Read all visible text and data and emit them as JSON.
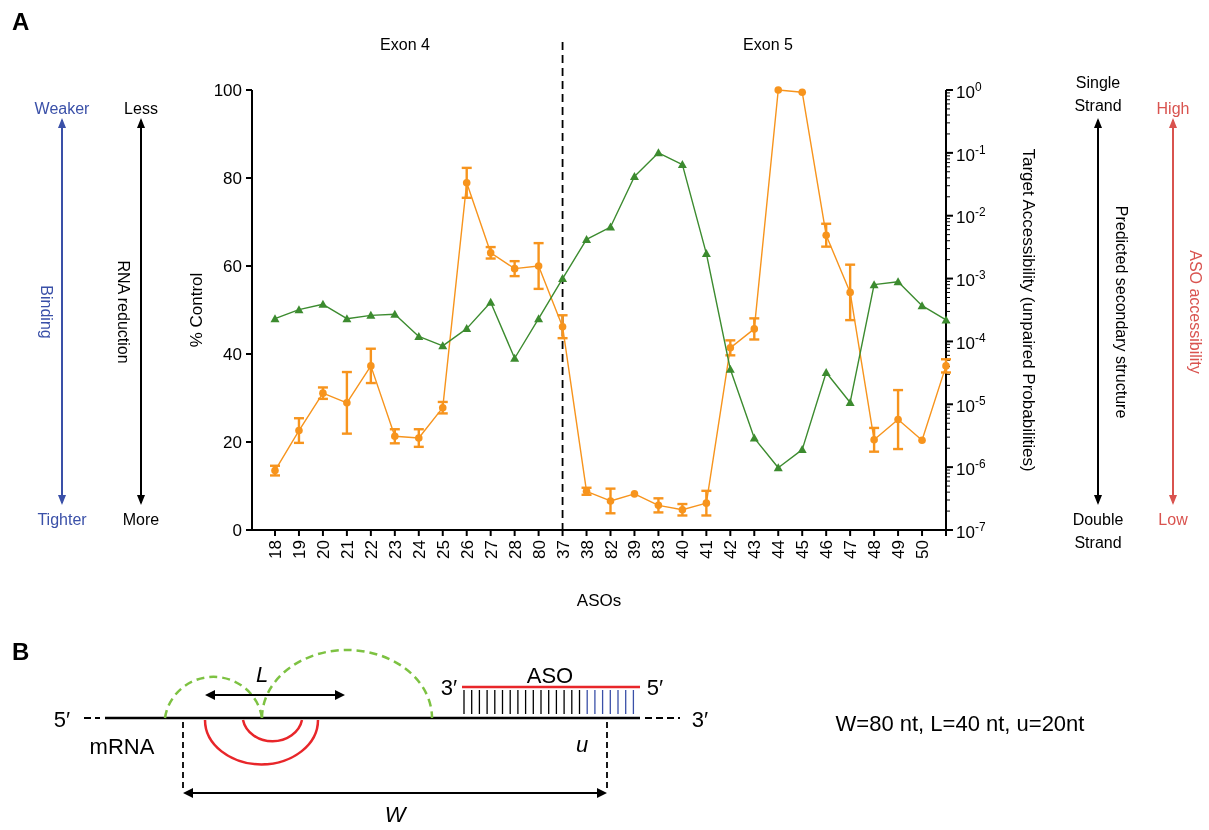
{
  "chart_data": {
    "type": "line",
    "ylabel": "% Control",
    "xlabel": "ASOs",
    "y2label": "Target Accessibility (unpaired Probabilities)",
    "categories": [
      "18",
      "19",
      "20",
      "21",
      "22",
      "23",
      "24",
      "25",
      "26",
      "27",
      "28",
      "80",
      "37",
      "38",
      "82",
      "39",
      "83",
      "40",
      "41",
      "42",
      "43",
      "44",
      "45",
      "46",
      "47",
      "48",
      "49",
      "50",
      null
    ],
    "ylim": [
      0,
      100
    ],
    "yticks": [
      0,
      20,
      40,
      60,
      80,
      100
    ],
    "y2lim": [
      1e-07,
      1
    ],
    "y2ticks": [
      {
        "value": 1e-07,
        "label": "10$^{-7}$"
      },
      {
        "value": 1e-06,
        "label": "10$^{-6}$"
      },
      {
        "value": 1e-05,
        "label": "10$^{-5}$"
      },
      {
        "value": 0.0001,
        "label": "10$^{-4}$"
      },
      {
        "value": 0.001,
        "label": "10$^{-3}$"
      },
      {
        "value": 0.01,
        "label": "10$^{-2}$"
      },
      {
        "value": 0.1,
        "label": "10$^{-1}$"
      },
      {
        "value": 1,
        "label": "10$^{0}$"
      }
    ],
    "log": "y2",
    "grid": false,
    "series": [
      {
        "color": "#f7941d",
        "marker": "circle",
        "values": [
          13.5,
          22.6,
          31.1,
          28.9,
          37.3,
          21.3,
          20.9,
          27.8,
          78.9,
          63,
          59.4,
          60,
          46.2,
          8.8,
          6.6,
          8.2,
          5.6,
          4.6,
          6.1,
          41.4,
          45.7,
          100,
          99.5,
          67,
          54,
          20.5,
          25.1,
          20.4,
          37.3
        ],
        "errors": [
          1.1,
          2.8,
          1.3,
          7,
          3.9,
          1.6,
          2,
          1.3,
          3.4,
          1.3,
          1.7,
          5.2,
          2.6,
          0.8,
          2.8,
          null,
          1.6,
          1.3,
          2.8,
          1.7,
          2.4,
          null,
          null,
          2.6,
          6.3,
          2.7,
          6.7,
          null,
          1.5
        ]
      },
      {
        "color": "#3c8b2f",
        "marker": "triangle",
        "axis": "y2",
        "values": [
          0.00023,
          0.00032,
          0.00039,
          0.00023,
          0.00026,
          0.00027,
          0.00012,
          8.5e-05,
          0.00016,
          0.00042,
          5.4e-05,
          0.00023,
          0.001,
          0.0042,
          0.0066,
          0.042,
          0.1,
          0.065,
          0.0025,
          3.6e-05,
          2.9e-06,
          9.8e-07,
          1.9e-06,
          3.2e-05,
          1.07e-05,
          0.0008,
          0.00089,
          0.00037,
          0.00022
        ]
      }
    ],
    "ref_lines": [
      {
        "axis": "x",
        "value": "37",
        "line_style": "dashed",
        "color": "#000000"
      }
    ],
    "annotations": [
      "A",
      "Exon 4",
      "Exon 5",
      "Weaker",
      "Tighter",
      "Binding",
      "Less",
      "More",
      "RNA reduction",
      "Single Strand",
      "Double Strand",
      "Predicted secondary structure",
      "High",
      "Low",
      "ASO accessibility",
      "B",
      "5′",
      "mRNA",
      "L",
      "3′",
      "ASO",
      "5′",
      "3′",
      "u",
      "W",
      "W=80 nt, L=40 nt, u=20nt"
    ]
  }
}
